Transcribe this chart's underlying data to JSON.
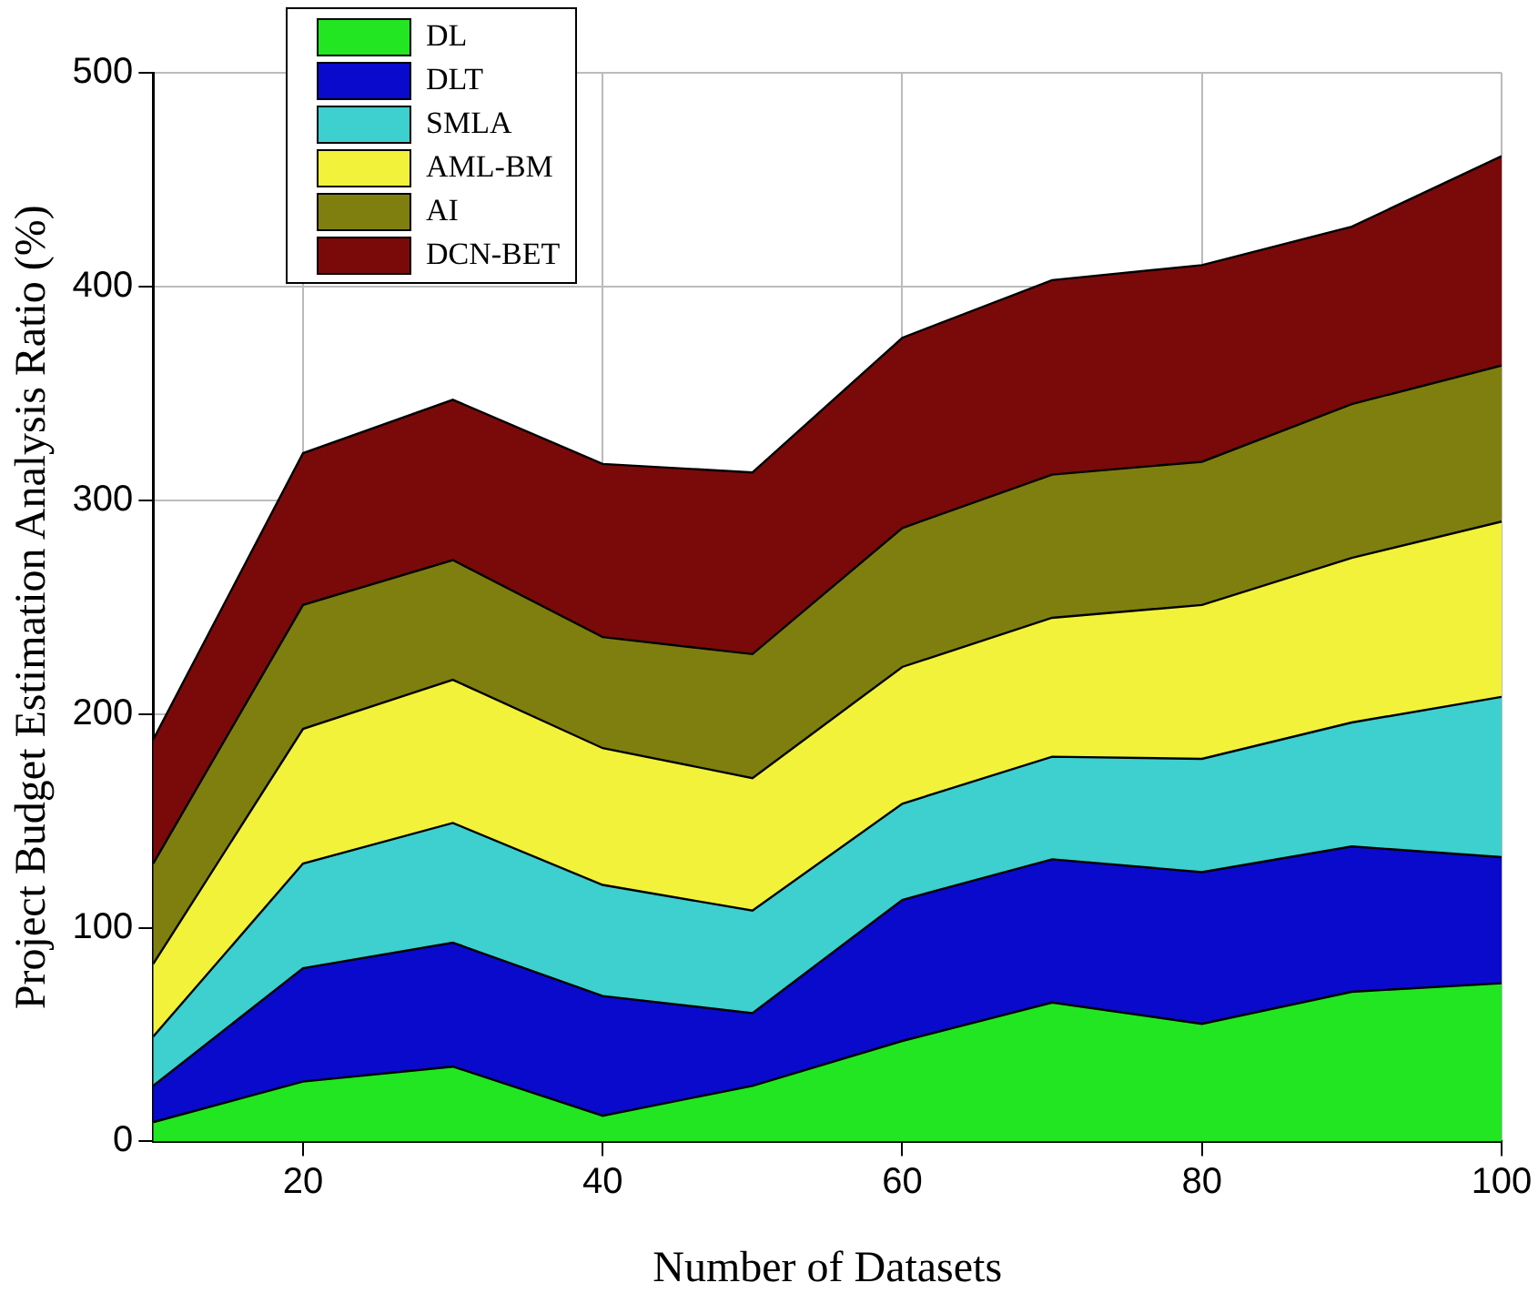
{
  "chart_data": {
    "type": "area",
    "stacked": true,
    "xlabel": "Number of Datasets",
    "ylabel": "Project Budget Estimation Analysis Ratio (%)",
    "x": [
      10,
      20,
      30,
      40,
      50,
      60,
      70,
      80,
      90,
      100
    ],
    "series": [
      {
        "name": "DL",
        "color": "#22e622",
        "values": [
          9,
          28,
          35,
          12,
          26,
          47,
          65,
          55,
          70,
          74
        ]
      },
      {
        "name": "DLT",
        "color": "#0a0acc",
        "values": [
          17,
          53,
          58,
          56,
          34,
          66,
          67,
          71,
          68,
          59
        ]
      },
      {
        "name": "SMLA",
        "color": "#3ecfcf",
        "values": [
          23,
          49,
          56,
          52,
          48,
          45,
          48,
          53,
          58,
          75
        ]
      },
      {
        "name": "AML-BM",
        "color": "#f2f23a",
        "values": [
          34,
          63,
          67,
          64,
          62,
          64,
          65,
          72,
          77,
          82
        ]
      },
      {
        "name": "AI",
        "color": "#7f7f10",
        "values": [
          47,
          58,
          56,
          52,
          58,
          65,
          67,
          67,
          72,
          73
        ]
      },
      {
        "name": "DCN-BET",
        "color": "#7a0a0a",
        "values": [
          58,
          71,
          75,
          81,
          85,
          89,
          91,
          92,
          83,
          98
        ]
      }
    ],
    "xlim": [
      10,
      100
    ],
    "xticks": [
      20,
      40,
      60,
      80,
      100
    ],
    "ylim": [
      0,
      500
    ],
    "yticks": [
      0,
      100,
      200,
      300,
      400,
      500
    ],
    "grid": true,
    "legend": "top left",
    "marker": "none"
  }
}
